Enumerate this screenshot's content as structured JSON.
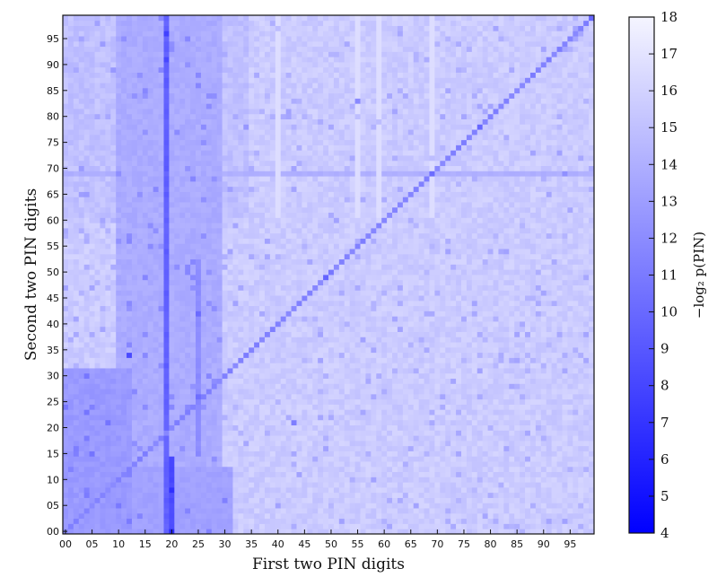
{
  "chart_data": {
    "type": "heatmap",
    "title": "",
    "xlabel": "First two PIN digits",
    "ylabel": "Second two PIN digits",
    "colorbar_label": "−log₂ p(PIN)",
    "x_range": [
      0,
      99
    ],
    "y_range": [
      0,
      99
    ],
    "x_tick_labels": [
      "00",
      "05",
      "10",
      "15",
      "20",
      "25",
      "30",
      "35",
      "40",
      "45",
      "50",
      "55",
      "60",
      "65",
      "70",
      "75",
      "80",
      "85",
      "90",
      "95"
    ],
    "y_tick_labels": [
      "00",
      "05",
      "10",
      "15",
      "20",
      "25",
      "30",
      "35",
      "40",
      "45",
      "50",
      "55",
      "60",
      "65",
      "70",
      "75",
      "80",
      "85",
      "90",
      "95"
    ],
    "colorbar_ticks": [
      "4",
      "5",
      "6",
      "7",
      "8",
      "9",
      "10",
      "11",
      "12",
      "13",
      "14",
      "15",
      "16",
      "17",
      "18"
    ],
    "colorbar_range": [
      4,
      18
    ],
    "colormap": {
      "low": "#0000ff",
      "high": "#f5f5ff"
    },
    "features": {
      "background_value": 15.6,
      "diagonal_value": 11.5,
      "low_block_value": 12.8,
      "low_block_x": [
        0,
        12
      ],
      "low_block_y": [
        0,
        31
      ],
      "band_x_10_29": {
        "x": [
          10,
          29
        ],
        "value": 13.8
      },
      "band_y_0_12": {
        "y": [
          0,
          12
        ],
        "value": 13.2
      },
      "strong_column_x": 19,
      "strong_column_value": 9.5,
      "strong_column_20_low_y": {
        "x": 20,
        "y": [
          0,
          14
        ],
        "value": 8.2
      },
      "column_25": {
        "x": 25,
        "y": [
          15,
          52
        ],
        "value": 12.0
      },
      "row_69_value": 14.0,
      "hotspots": [
        {
          "x": 12,
          "y": 34,
          "value": 8.2
        },
        {
          "x": 24,
          "y": 68,
          "value": 11.6
        },
        {
          "x": 69,
          "y": 69,
          "value": 10.2
        },
        {
          "x": 43,
          "y": 21,
          "value": 11.2
        },
        {
          "x": 55,
          "y": 83,
          "value": 11.8
        },
        {
          "x": 88,
          "y": 88,
          "value": 11.0
        },
        {
          "x": 50,
          "y": 50,
          "value": 10.8
        }
      ]
    }
  }
}
